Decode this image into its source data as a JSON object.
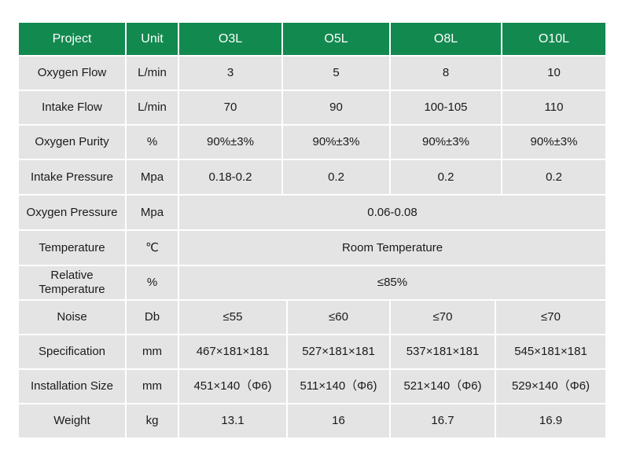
{
  "table": {
    "header": [
      "Project",
      "Unit",
      "O3L",
      "O5L",
      "O8L",
      "O10L"
    ],
    "rows": [
      {
        "label": "Oxygen Flow",
        "unit": "L/min",
        "values": [
          "3",
          "5",
          "8",
          "10"
        ]
      },
      {
        "label": "Intake Flow",
        "unit": "L/min",
        "values": [
          "70",
          "90",
          "100-105",
          "110"
        ]
      },
      {
        "label": "Oxygen Purity",
        "unit": "%",
        "values": [
          "90%±3%",
          "90%±3%",
          "90%±3%",
          "90%±3%"
        ]
      },
      {
        "label": "Intake Pressure",
        "unit": "Mpa",
        "values": [
          "0.18-0.2",
          "0.2",
          "0.2",
          "0.2"
        ]
      },
      {
        "label": "Oxygen Pressure",
        "unit": "Mpa",
        "values": [
          "0.06-0.08"
        ]
      },
      {
        "label": "Temperature",
        "unit": "℃",
        "values": [
          "Room Temperature"
        ]
      },
      {
        "label": "Relative Temperature",
        "unit": "%",
        "values": [
          "≤85%"
        ]
      },
      {
        "label": "Noise",
        "unit": "Db",
        "values": [
          "≤55",
          "≤60",
          "≤70",
          "≤70"
        ]
      },
      {
        "label": "Specification",
        "unit": "mm",
        "values": [
          "467×181×181",
          "527×181×181",
          "537×181×181",
          "545×181×181"
        ]
      },
      {
        "label": "Installation Size",
        "unit": "mm",
        "values": [
          "451×140（Φ6)",
          "511×140（Φ6)",
          "521×140（Φ6)",
          "529×140（Φ6)"
        ]
      },
      {
        "label": "Weight",
        "unit": "kg",
        "values": [
          "13.1",
          "16",
          "16.7",
          "16.9"
        ]
      }
    ]
  }
}
